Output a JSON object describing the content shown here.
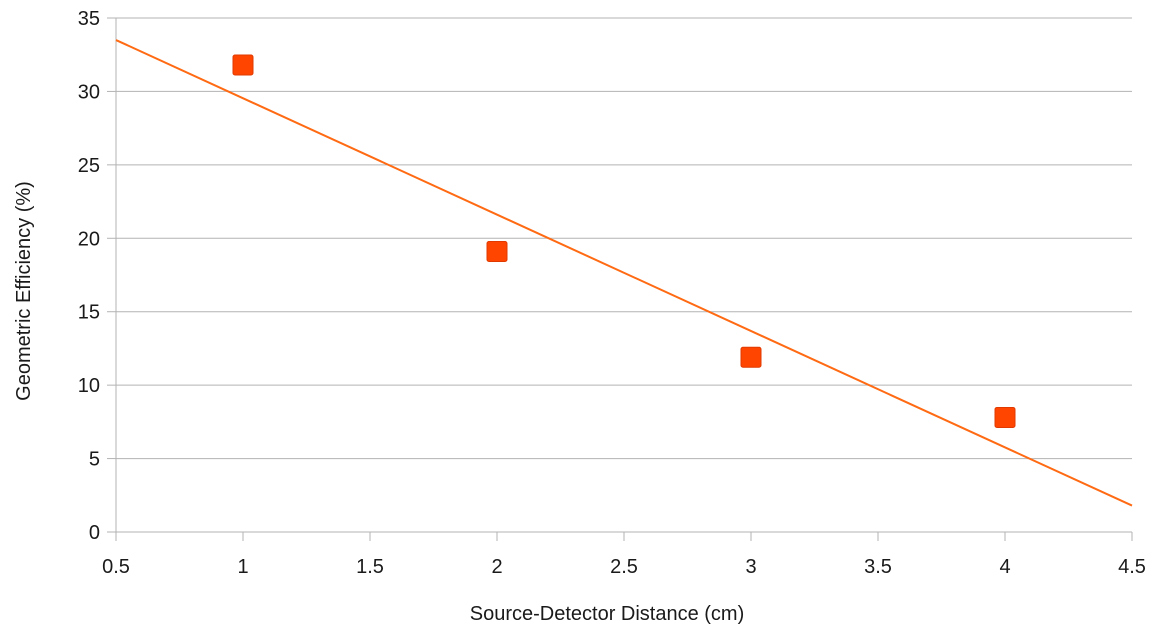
{
  "chart_data": {
    "type": "scatter",
    "title": "",
    "xlabel": "Source-Detector Distance (cm)",
    "ylabel": "Geometric Efficiency (%)",
    "xlim": [
      0.5,
      4.5
    ],
    "ylim": [
      0,
      35
    ],
    "xticks": [
      0.5,
      1,
      1.5,
      2,
      2.5,
      3,
      3.5,
      4,
      4.5
    ],
    "xtick_labels": [
      "0.5",
      "1",
      "1.5",
      "2",
      "2.5",
      "3",
      "3.5",
      "4",
      "4.5"
    ],
    "yticks": [
      0,
      5,
      10,
      15,
      20,
      25,
      30,
      35
    ],
    "ytick_labels": [
      "0",
      "5",
      "10",
      "15",
      "20",
      "25",
      "30",
      "35"
    ],
    "grid": "horizontal",
    "legend": "none",
    "series": [
      {
        "marker": "square",
        "color": "#ff4500",
        "x": [
          1,
          2,
          3,
          4
        ],
        "y": [
          31.8,
          19.1,
          11.9,
          7.8
        ]
      }
    ],
    "trendline": {
      "type": "linear",
      "color": "#ff6a13",
      "x": [
        0.5,
        4.5
      ],
      "y": [
        33.5,
        1.8
      ]
    },
    "colors": {
      "grid": "#b3b3b3",
      "axis": "#b3b3b3",
      "marker": "#ff4500",
      "trendline": "#ff6a13"
    }
  }
}
